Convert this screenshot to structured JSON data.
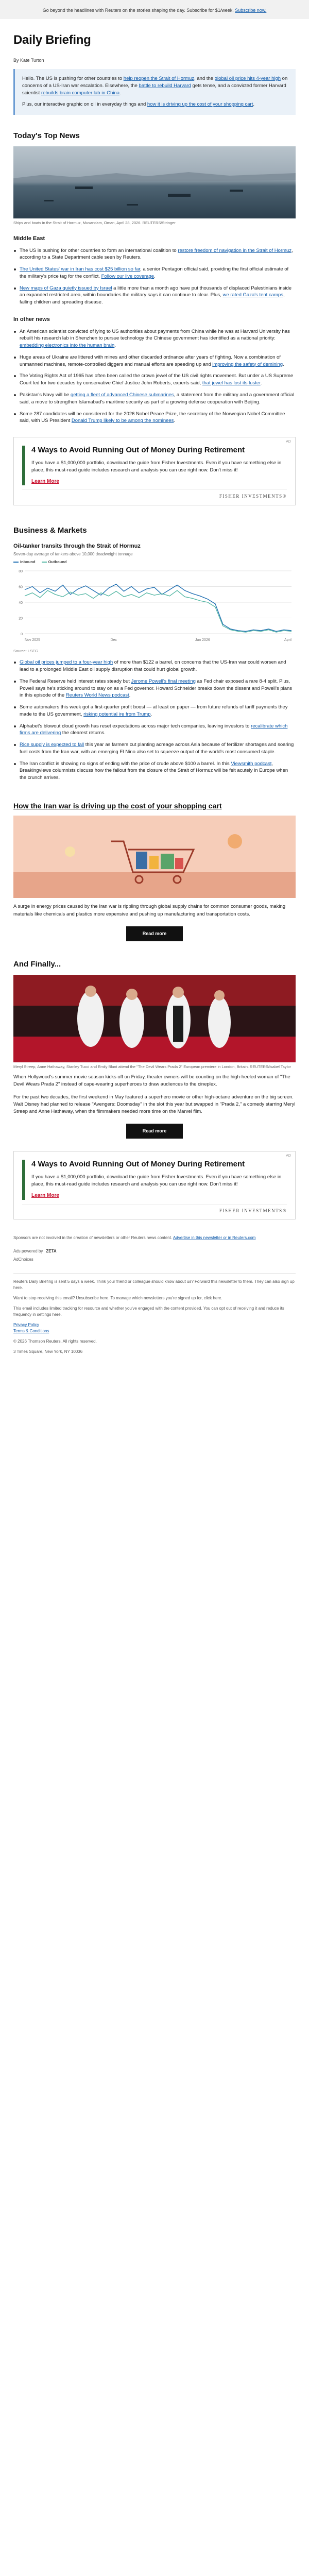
{
  "topbar": {
    "text": "Go beyond the headlines with Reuters on the stories shaping the day. Subscribe for $1/week.",
    "link": "Subscribe now."
  },
  "header": {
    "title": "Daily Briefing",
    "byline": "By Kate Turton"
  },
  "intro": {
    "p1_a": "Hello. The US is pushing for other countries to ",
    "p1_link1": "help reopen the Strait of Hormuz",
    "p1_b": ", and the ",
    "p1_link2": "global oil price hits 4-year high",
    "p1_c": " on concerns of a US-Iran war escalation. Elsewhere, the ",
    "p1_link3": "battle to rebuild Harvard",
    "p1_d": " gets tense, and a convicted former Harvard scientist ",
    "p1_link4": "rebuilds brain computer lab in China",
    "p1_e": ".",
    "p2_a": "Plus, our interactive graphic on oil in everyday things and ",
    "p2_link": "how it is driving up the cost of your shopping cart",
    "p2_b": "."
  },
  "top_news": {
    "title": "Today's Top News",
    "hero_caption": "Ships and boats in the Strait of Hormuz, Musandam, Oman, April 28, 2026. REUTERS/Stringer",
    "middle_east_title": "Middle East",
    "middle_east": [
      {
        "a": "The US is pushing for other countries to form an international coalition to ",
        "link": "restore freedom of navigation in the Strait of Hormuz",
        "b": ", according to a State Department cable seen by Reuters."
      },
      {
        "a": "",
        "link": "The United States' war in Iran has cost $25 billion so far",
        "b": ", a senior Pentagon official said, providing the first official estimate of the military's price tag for the conflict. ",
        "link2": "Follow our live coverage",
        "c": "."
      },
      {
        "a": "",
        "link": "New maps of Gaza quietly issued by Israel",
        "b": " a little more than a month ago have put thousands of displaced Palestinians inside an expanded restricted area, within boundaries the military says it can continue to clear. Plus, ",
        "link2": "we rated Gaza's tent camps",
        "c": ", failing children and spreading disease."
      }
    ],
    "other_title": "In other news",
    "other_news": [
      {
        "a": "An American scientist convicted of lying to US authorities about payments from China while he was at Harvard University has rebuilt his research lab in Shenzhen to pursue technology the Chinese government has identified as a national priority: ",
        "link": "embedding electronics into the human brain",
        "b": "."
      },
      {
        "a": "Huge areas of Ukraine are littered with mines and other discarded ordnance after years of fighting. Now a combination of unmanned machines, remote-controlled diggers and manual efforts are speeding up and ",
        "link": "improving the safety of demining",
        "b": "."
      },
      {
        "a": "The Voting Rights Act of 1965 has often been called the crown jewel of the US civil rights movement. But under a US Supreme Court led for two decades by conservative Chief Justice John Roberts, experts said, ",
        "link": "that jewel has lost its luster",
        "b": "."
      },
      {
        "a": "Pakistan's Navy will be ",
        "link": "getting a fleet of advanced Chinese submarines",
        "b": ", a statement from the military and a government official said, a move to strengthen Islamabad's maritime security as part of a growing defense cooperation with Beijing."
      },
      {
        "a": "Some 287 candidates will be considered for the 2026 Nobel Peace Prize, the secretary of the Norwegian Nobel Committee said, with US President ",
        "link": "Donald Trump likely to be among the nominees",
        "b": "."
      }
    ]
  },
  "ad": {
    "flag": "AD",
    "title": "4 Ways to Avoid Running Out of Money During Retirement",
    "body": "If you have a $1,000,000 portfolio, download the guide from Fisher Investments. Even if you have something else in place, this must-read guide includes research and analysis you can use right now. Don't miss it!",
    "cta": "Learn More",
    "logo": "FISHER INVESTMENTS®"
  },
  "markets": {
    "title": "Business & Markets",
    "chart_title": "Oil-tanker transits through the Strait of Hormuz",
    "chart_sub": "Seven-day average of tankers above 10,000 deadweight tonnage",
    "chart_source": "Source: LSEG",
    "items": [
      {
        "a": "",
        "link": "Global oil prices jumped to a four-year high",
        "b": " of more than $122 a barrel, on concerns that the US-Iran war could worsen and lead to a prolonged Middle East oil supply disruption that could hurt global growth."
      },
      {
        "a": "The Federal Reserve held interest rates steady but ",
        "link": "Jerome Powell's final meeting",
        "b": " as Fed chair exposed a rare 8-4 split. Plus, Powell says he's sticking around to stay on as a Fed governor. Howard Schneider breaks down the dissent and Powell's plans in this episode of the ",
        "link2": "Reuters World News podcast",
        "c": "."
      },
      {
        "a": "Some automakers this week got a first-quarter profit boost — at least on paper — from future refunds of tariff payments they made to the US government, ",
        "link": "risking potential ire from Trump",
        "b": "."
      },
      {
        "a": "Alphabet's blowout cloud growth has reset expectations across major tech companies, leaving investors to ",
        "link": "recalibrate which firms are delivering",
        "b": " the clearest returns."
      },
      {
        "a": "",
        "link": "Rice supply is expected to fall",
        "b": " this year as farmers cut planting acreage across Asia because of fertilizer shortages and soaring fuel costs from the Iran war, with an emerging El Nino also set to squeeze output of the world's most consumed staple."
      },
      {
        "a": "The Iran conflict is showing no signs of ending with the price of crude above $100 a barrel. In this ",
        "link": "Viewsmith podcast",
        "b": ", Breakingviews columnists discuss how the fallout from the closure of the Strait of Hormuz will be felt acutely in Europe when the crunch arrives."
      }
    ]
  },
  "chart_data": {
    "type": "line",
    "title": "Oil-tanker transits through the Strait of Hormuz",
    "subtitle": "Seven-day average of tankers above 10,000 deadweight tonnage",
    "x_ticks": [
      "Nov 2025",
      "Dec",
      "Jan 2026",
      "April"
    ],
    "ylim": [
      0,
      80
    ],
    "y_ticks": [
      0,
      20,
      40,
      60,
      80
    ],
    "series": [
      {
        "name": "Inbound",
        "color": "#1f6fb2",
        "values": [
          56,
          60,
          52,
          58,
          54,
          62,
          50,
          57,
          61,
          55,
          49,
          58,
          63,
          54,
          60,
          52,
          57,
          59,
          50,
          56,
          62,
          55,
          51,
          48,
          44,
          38,
          12,
          6,
          4,
          3,
          5,
          4,
          6,
          3,
          5,
          4
        ]
      },
      {
        "name": "Outbound",
        "color": "#58b8a6",
        "values": [
          48,
          52,
          46,
          55,
          50,
          47,
          53,
          49,
          51,
          45,
          52,
          48,
          54,
          47,
          50,
          46,
          52,
          49,
          51,
          48,
          55,
          47,
          45,
          42,
          40,
          34,
          10,
          5,
          3,
          2,
          4,
          3,
          5,
          2,
          4,
          3
        ]
      }
    ]
  },
  "feature": {
    "title": "How the Iran war is driving up the cost of your shopping cart",
    "body": "A surge in energy prices caused by the Iran war is rippling through global supply chains for common consumer goods, making materials like chemicals and plastics more expensive and pushing up manufacturing and transportation costs.",
    "button": "Read more"
  },
  "finally": {
    "title": "And Finally...",
    "caption": "Meryl Streep, Anne Hathaway, Stanley Tucci and Emily Blunt attend the \"The Devil Wears Prada 2\" European premiere in London, Britain. REUTERS/Isabel Taylor",
    "p1": "When Hollywood's summer movie season kicks off on Friday, theater owners will be counting on the high-heeled woman of \"The Devil Wears Prada 2\" instead of cape-wearing superheroes to draw audiences to the cineplex.",
    "p2": "For the past two decades, the first weekend in May featured a superhero movie or other high-octane adventure on the big screen. Walt Disney had planned to release \"Avengers: Doomsday\" in the slot this year but swapped in \"Prada 2,\" a comedy starring Meryl Streep and Anne Hathaway, when the filmmakers needed more time on the Marvel film.",
    "button": "Read more"
  },
  "footer": {
    "sponsor_note": "Sponsors are not involved in the creation of newsletters or other Reuters news content. ",
    "sponsor_link": "Advertise in this newsletter or in Reuters.com",
    "ads_by": "Ads powered by",
    "zeta": "ZETA",
    "adchoices": "AdChoices",
    "p1": "Reuters Daily Briefing is sent 5 days a week. Think your friend or colleague should know about us? Forward this newsletter to them. They can also sign up here.",
    "p2": "Want to stop receiving this email? Unsubscribe here. To manage which newsletters you're signed up for, click here.",
    "p3": "This email includes limited tracking for resource and whether you've engaged with the content provided. You can opt out of receiving it and reduce its frequency in settings here.",
    "links": [
      "Privacy Policy",
      "Terms & Conditions"
    ],
    "copyright": "© 2026 Thomson Reuters. All rights reserved.",
    "address": "3 Times Square, New York, NY 10036"
  }
}
